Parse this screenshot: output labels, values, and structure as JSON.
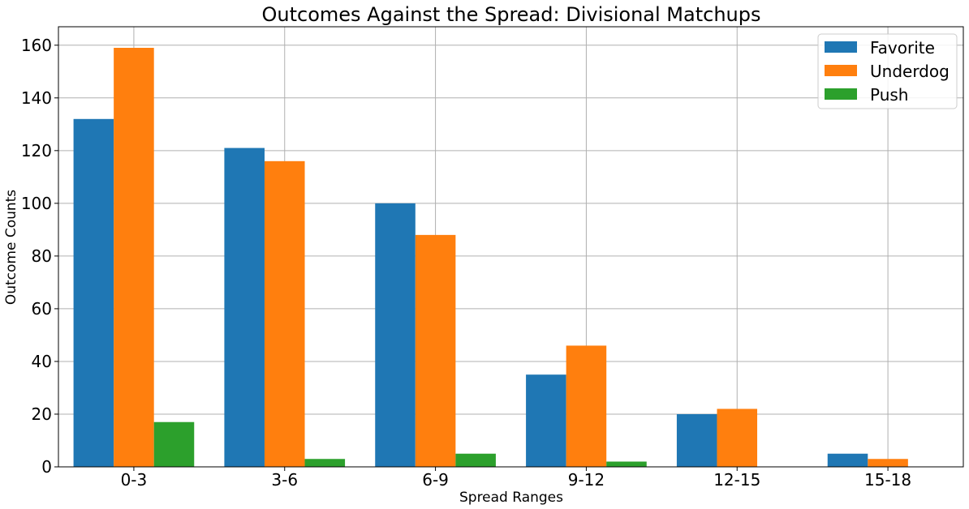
{
  "chart_data": {
    "type": "bar",
    "title": "Outcomes Against the Spread: Divisional Matchups",
    "xlabel": "Spread Ranges",
    "ylabel": "Outcome Counts",
    "categories": [
      "0-3",
      "3-6",
      "6-9",
      "9-12",
      "12-15",
      "15-18"
    ],
    "series": [
      {
        "name": "Favorite",
        "color": "#1f77b4",
        "values": [
          132,
          121,
          100,
          35,
          20,
          5
        ]
      },
      {
        "name": "Underdog",
        "color": "#ff7f0e",
        "values": [
          159,
          116,
          88,
          46,
          22,
          3
        ]
      },
      {
        "name": "Push",
        "color": "#2ca02c",
        "values": [
          17,
          3,
          5,
          2,
          0,
          0
        ]
      }
    ],
    "ylim": [
      0,
      167
    ],
    "yticks": [
      0,
      20,
      40,
      60,
      80,
      100,
      120,
      140,
      160
    ],
    "grid": true,
    "legend_position": "top-right"
  }
}
